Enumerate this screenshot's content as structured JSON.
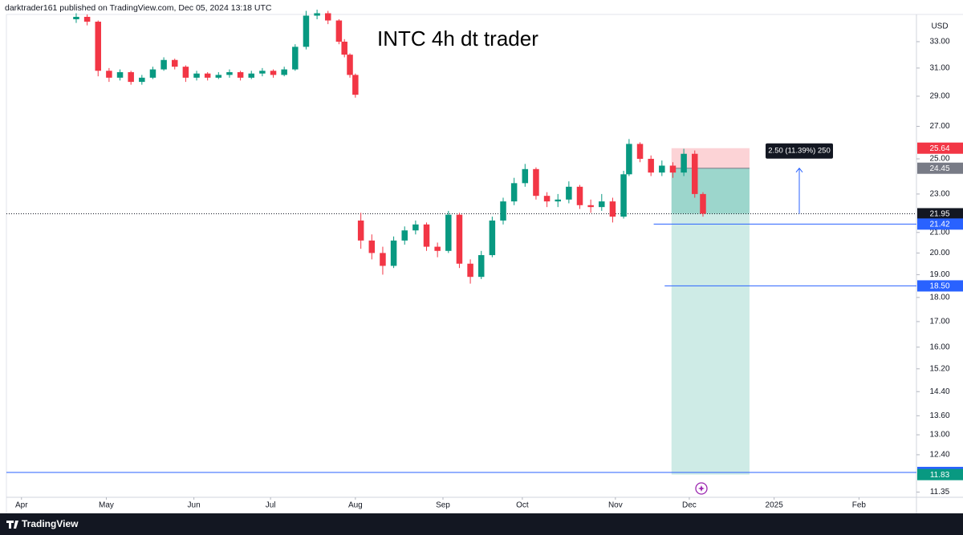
{
  "header": {
    "text": "darktrader161 published on TradingView.com, Dec 05, 2024 13:18 UTC"
  },
  "footer": {
    "brand": "TradingView"
  },
  "chart_data": {
    "type": "candlestick",
    "title": "INTC 4h  dt trader",
    "currency": "USD",
    "x": [
      20,
      24,
      28,
      32,
      36,
      40,
      44,
      48,
      52,
      56,
      60,
      64,
      68,
      72,
      76,
      80,
      84,
      88,
      92,
      96,
      100,
      104,
      108,
      112,
      116,
      118,
      120,
      122,
      124,
      128,
      132,
      136,
      140,
      144,
      148,
      152,
      156,
      160,
      164,
      168,
      172,
      176,
      180,
      184,
      188,
      192,
      196,
      200,
      204,
      208,
      212,
      216,
      220,
      222,
      226,
      230,
      234,
      238,
      242,
      246,
      249
    ],
    "open": [
      34.8,
      35.0,
      34.6,
      30.8,
      30.3,
      30.7,
      30.0,
      30.3,
      30.9,
      31.6,
      31.1,
      30.3,
      30.6,
      30.3,
      30.5,
      30.7,
      30.3,
      30.6,
      30.8,
      30.5,
      30.9,
      32.6,
      35.1,
      35.3,
      34.7,
      33.0,
      32.0,
      30.5,
      21.6,
      20.6,
      20.0,
      19.4,
      20.6,
      21.1,
      21.4,
      20.3,
      20.1,
      21.9,
      19.5,
      18.9,
      19.9,
      21.6,
      22.6,
      23.6,
      24.4,
      22.9,
      22.6,
      22.7,
      23.4,
      22.4,
      22.3,
      22.6,
      21.8,
      24.1,
      25.9,
      25.0,
      24.2,
      24.6,
      24.2,
      25.3,
      23.0
    ],
    "high": [
      35.3,
      35.2,
      34.7,
      31.0,
      30.9,
      30.8,
      30.5,
      31.1,
      31.8,
      31.7,
      31.2,
      30.8,
      30.7,
      30.7,
      30.9,
      30.8,
      30.8,
      31.0,
      30.9,
      31.1,
      32.8,
      35.5,
      35.6,
      35.5,
      34.8,
      33.2,
      32.1,
      30.6,
      22.0,
      20.9,
      20.3,
      20.8,
      21.3,
      21.6,
      21.5,
      20.5,
      22.1,
      22.0,
      19.7,
      20.1,
      21.8,
      22.8,
      23.9,
      24.7,
      24.5,
      23.1,
      23.0,
      23.7,
      23.5,
      22.7,
      23.0,
      22.8,
      24.3,
      26.2,
      26.0,
      25.2,
      24.9,
      24.8,
      25.6,
      25.5,
      23.1
    ],
    "low": [
      34.5,
      34.3,
      30.4,
      30.0,
      30.1,
      29.8,
      29.8,
      30.2,
      30.8,
      30.9,
      30.0,
      30.1,
      30.1,
      30.2,
      30.3,
      30.1,
      30.2,
      30.4,
      30.3,
      30.4,
      30.8,
      32.4,
      34.8,
      34.4,
      32.8,
      31.8,
      30.3,
      28.9,
      20.2,
      19.7,
      19.0,
      19.3,
      20.4,
      20.9,
      20.1,
      19.8,
      20.0,
      19.3,
      18.6,
      18.8,
      19.8,
      21.4,
      22.4,
      23.4,
      22.7,
      22.3,
      22.3,
      22.5,
      22.2,
      22.0,
      22.1,
      21.5,
      21.7,
      24.0,
      24.8,
      24.0,
      24.0,
      23.9,
      24.0,
      22.8,
      21.8
    ],
    "close": [
      35.0,
      34.6,
      30.8,
      30.3,
      30.7,
      30.0,
      30.3,
      30.9,
      31.6,
      31.1,
      30.3,
      30.6,
      30.3,
      30.5,
      30.7,
      30.3,
      30.6,
      30.8,
      30.5,
      30.9,
      32.6,
      35.1,
      35.3,
      34.7,
      33.0,
      32.0,
      30.5,
      29.1,
      20.6,
      20.0,
      19.4,
      20.6,
      21.1,
      21.4,
      20.3,
      20.1,
      21.9,
      19.5,
      18.9,
      19.9,
      21.6,
      22.6,
      23.6,
      24.4,
      22.9,
      22.6,
      22.7,
      23.4,
      22.4,
      22.3,
      22.6,
      21.8,
      24.1,
      25.9,
      25.0,
      24.2,
      24.6,
      24.2,
      25.3,
      23.0,
      21.95
    ],
    "up_color": "#089981",
    "down_color": "#f23645",
    "xlim": [
      -5.5,
      327
    ],
    "xticks": [
      {
        "value": 0,
        "label": "Apr"
      },
      {
        "value": 31,
        "label": "May"
      },
      {
        "value": 63,
        "label": "Jun"
      },
      {
        "value": 91,
        "label": "Jul"
      },
      {
        "value": 122,
        "label": "Aug"
      },
      {
        "value": 154,
        "label": "Sep"
      },
      {
        "value": 183,
        "label": "Oct"
      },
      {
        "value": 217,
        "label": "Nov"
      },
      {
        "value": 244,
        "label": "Dec"
      },
      {
        "value": 275,
        "label": "2025"
      },
      {
        "value": 306,
        "label": "Feb"
      }
    ],
    "ylim": [
      11.21,
      35.2
    ],
    "log_scale": true,
    "yticks": [
      {
        "value": 33,
        "label": "33.00"
      },
      {
        "value": 31,
        "label": "31.00"
      },
      {
        "value": 29,
        "label": "29.00"
      },
      {
        "value": 27,
        "label": "27.00"
      },
      {
        "value": 25,
        "label": "25.00"
      },
      {
        "value": 23,
        "label": "23.00"
      },
      {
        "value": 21,
        "label": "21.00"
      },
      {
        "value": 20,
        "label": "20.00"
      },
      {
        "value": 19,
        "label": "19.00"
      },
      {
        "value": 18,
        "label": "18.00"
      },
      {
        "value": 17,
        "label": "17.00"
      },
      {
        "value": 16,
        "label": "16.00"
      },
      {
        "value": 15.2,
        "label": "15.20"
      },
      {
        "value": 14.4,
        "label": "14.40"
      },
      {
        "value": 13.6,
        "label": "13.60"
      },
      {
        "value": 13,
        "label": "13.00"
      },
      {
        "value": 12.4,
        "label": "12.40"
      },
      {
        "value": 11.35,
        "label": "11.35"
      }
    ],
    "last_price": {
      "value": 21.95,
      "color": "#131722"
    },
    "levels": [
      {
        "value": 21.42,
        "from": 231,
        "color": "#2962ff"
      },
      {
        "value": 18.5,
        "label": "18.50",
        "from": 235,
        "color": "#2962ff"
      },
      {
        "value": 11.89,
        "from": -5.5,
        "color": "#2962ff"
      }
    ],
    "position": {
      "stop": 25.64,
      "entry": 24.45,
      "target": 11.83,
      "from": 237.5,
      "to": 266,
      "stop_color": "#f23645",
      "entry_color": "#787b86",
      "target_color": "#089981",
      "label": "2.50 (11.39%) 250"
    }
  }
}
